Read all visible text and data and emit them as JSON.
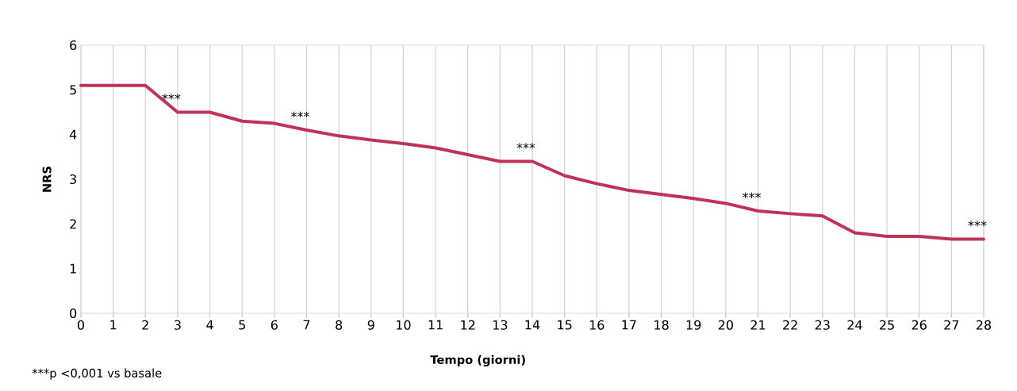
{
  "chart_data": {
    "type": "line",
    "xlabel": "Tempo (giorni)",
    "ylabel": "NRS",
    "x": [
      0,
      1,
      2,
      3,
      4,
      5,
      6,
      7,
      8,
      9,
      10,
      11,
      12,
      13,
      14,
      15,
      16,
      17,
      18,
      19,
      20,
      21,
      22,
      23,
      24,
      25,
      26,
      27,
      28
    ],
    "series": [
      {
        "color": "#c0325a",
        "values": [
          5.1,
          5.1,
          5.1,
          4.5,
          4.5,
          4.3,
          4.25,
          4.1,
          3.97,
          3.88,
          3.8,
          3.7,
          3.55,
          3.4,
          3.4,
          3.08,
          2.9,
          2.75,
          2.66,
          2.57,
          2.46,
          2.29,
          2.23,
          2.18,
          1.8,
          1.72,
          1.72,
          1.66,
          1.66
        ]
      }
    ],
    "xlim": [
      0,
      28
    ],
    "xticks": [
      0,
      1,
      2,
      3,
      4,
      5,
      6,
      7,
      8,
      9,
      10,
      11,
      12,
      13,
      14,
      15,
      16,
      17,
      18,
      19,
      20,
      21,
      22,
      23,
      24,
      25,
      26,
      27,
      28
    ],
    "ylim": [
      0,
      6
    ],
    "yticks": [
      0,
      1,
      2,
      3,
      4,
      5,
      6
    ],
    "grid": "x",
    "marker": "none",
    "line_style": "solid",
    "annotations": [
      {
        "text": "***",
        "x": 3,
        "y": 4.5
      },
      {
        "text": "***",
        "x": 7,
        "y": 4.1
      },
      {
        "text": "***",
        "x": 14,
        "y": 3.4
      },
      {
        "text": "***",
        "x": 21,
        "y": 2.29
      },
      {
        "text": "***",
        "x": 28,
        "y": 1.66
      },
      "***p <0,001 vs basale"
    ]
  }
}
